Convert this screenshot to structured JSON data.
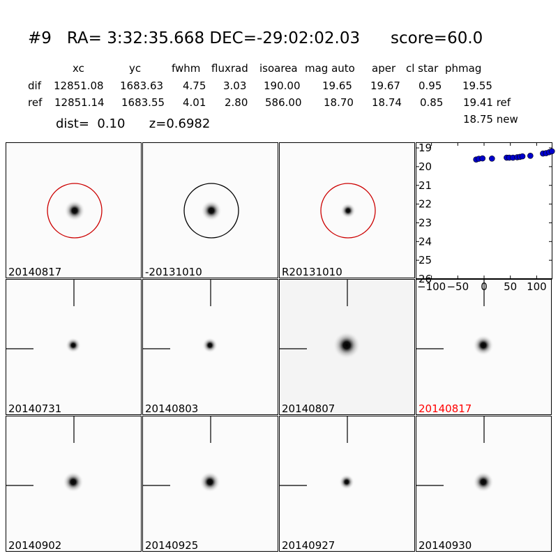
{
  "header": {
    "title": "#9   RA= 3:32:35.668 DEC=-29:02:02.03      score=60.0",
    "columns": [
      "xc",
      "yc",
      "fwhm",
      "fluxrad",
      "isoarea",
      "mag auto",
      "aper",
      "cl star",
      "phmag"
    ],
    "rows": [
      {
        "label": "dif",
        "values": [
          "12851.08",
          "1683.63",
          "4.75",
          "3.03",
          "190.00",
          "19.65",
          "19.67",
          "0.95",
          "19.55"
        ]
      },
      {
        "label": "ref",
        "values": [
          "12851.14",
          "1683.55",
          "4.01",
          "2.80",
          "586.00",
          "18.70",
          "18.74",
          "0.85",
          "19.41 ref"
        ]
      }
    ],
    "extra_mag": "18.75 new",
    "dist_line": "dist=  0.10      z=0.6982"
  },
  "stamps": [
    {
      "label": "20140817",
      "label_color": "#000000",
      "marker": "circle",
      "marker_color": "#cc0000",
      "blob": "medium"
    },
    {
      "label": "-20131010",
      "label_color": "#000000",
      "marker": "circle",
      "marker_color": "#000000",
      "blob": "medium"
    },
    {
      "label": "R20131010",
      "label_color": "#000000",
      "marker": "circle",
      "marker_color": "#cc0000",
      "blob": "small"
    },
    {
      "label": "20140731",
      "label_color": "#000000",
      "marker": "crosshair",
      "blob": "small"
    },
    {
      "label": "20140803",
      "label_color": "#000000",
      "marker": "crosshair",
      "blob": "small"
    },
    {
      "label": "20140807",
      "label_color": "#000000",
      "marker": "crosshair",
      "blob": "large"
    },
    {
      "label": "20140817",
      "label_color": "#ff0000",
      "marker": "crosshair",
      "blob": "medium"
    },
    {
      "label": "20140902",
      "label_color": "#000000",
      "marker": "crosshair",
      "blob": "medium"
    },
    {
      "label": "20140925",
      "label_color": "#000000",
      "marker": "crosshair",
      "blob": "medium"
    },
    {
      "label": "20140927",
      "label_color": "#000000",
      "marker": "crosshair",
      "blob": "small"
    },
    {
      "label": "20140930",
      "label_color": "#000000",
      "marker": "crosshair",
      "blob": "medium"
    }
  ],
  "chart_data": {
    "type": "scatter",
    "xlim": [
      -130,
      130
    ],
    "ylim": [
      26,
      18.7
    ],
    "x_ticks": [
      "−100",
      "−50",
      "0",
      "50",
      "100"
    ],
    "x_tick_values": [
      -100,
      -50,
      0,
      50,
      100
    ],
    "y_ticks": [
      "19",
      "20",
      "21",
      "22",
      "23",
      "24",
      "25",
      "26"
    ],
    "y_tick_values": [
      19,
      20,
      21,
      22,
      23,
      24,
      25,
      26
    ],
    "point_color": "#0000cc",
    "points": [
      {
        "x": -15,
        "y": 19.62
      },
      {
        "x": -10,
        "y": 19.58
      },
      {
        "x": -3,
        "y": 19.56
      },
      {
        "x": 15,
        "y": 19.57
      },
      {
        "x": 43,
        "y": 19.52
      },
      {
        "x": 48,
        "y": 19.52
      },
      {
        "x": 55,
        "y": 19.52
      },
      {
        "x": 63,
        "y": 19.5
      },
      {
        "x": 68,
        "y": 19.48
      },
      {
        "x": 73,
        "y": 19.45
      },
      {
        "x": 88,
        "y": 19.42
      },
      {
        "x": 112,
        "y": 19.3
      },
      {
        "x": 118,
        "y": 19.28
      },
      {
        "x": 124,
        "y": 19.23
      },
      {
        "x": 129,
        "y": 19.18
      }
    ]
  }
}
